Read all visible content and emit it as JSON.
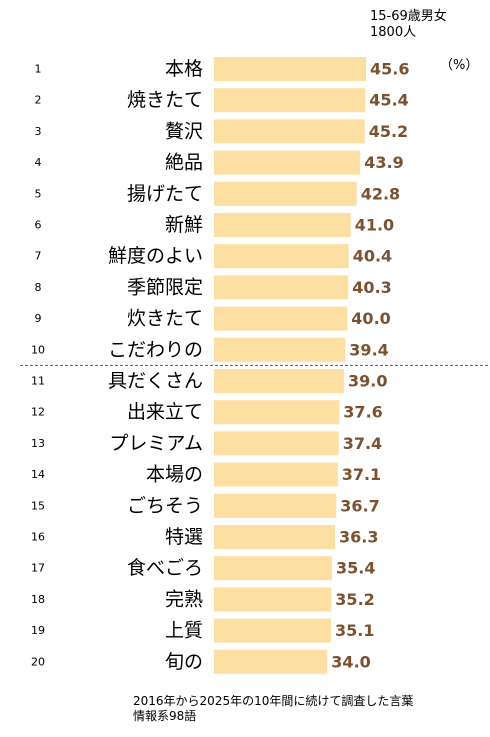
{
  "header": {
    "sample_line1": "15-69歳男女",
    "sample_line2": "1800人",
    "unit": "（%）"
  },
  "footnote": {
    "line1": "2016年から2025年の10年間に続けて調査した言葉",
    "line2": "情報系98語"
  },
  "colors": {
    "bar": "#FDDFA4",
    "value_text": "#7A5230",
    "divider": "#555555"
  },
  "chart_data": {
    "type": "bar",
    "orientation": "horizontal",
    "ranks": [
      "1",
      "2",
      "3",
      "4",
      "5",
      "6",
      "7",
      "8",
      "9",
      "10",
      "11",
      "12",
      "13",
      "14",
      "15",
      "16",
      "17",
      "18",
      "19",
      "20"
    ],
    "categories": [
      "本格",
      "焼きたて",
      "贅沢",
      "絶品",
      "揚げたて",
      "新鮮",
      "鮮度のよい",
      "季節限定",
      "炊きたて",
      "こだわりの",
      "具だくさん",
      "出来立て",
      "プレミアム",
      "本場の",
      "ごちそう",
      "特選",
      "食べごろ",
      "完熟",
      "上質",
      "旬の"
    ],
    "values": [
      45.6,
      45.4,
      45.2,
      43.9,
      42.8,
      41.0,
      40.4,
      40.3,
      40.0,
      39.4,
      39.0,
      37.6,
      37.4,
      37.1,
      36.7,
      36.3,
      35.4,
      35.2,
      35.1,
      34.0
    ],
    "value_labels": [
      "45.6",
      "45.4",
      "45.2",
      "43.9",
      "42.8",
      "41.0",
      "40.4",
      "40.3",
      "40.0",
      "39.4",
      "39.0",
      "37.6",
      "37.4",
      "37.1",
      "36.7",
      "36.3",
      "35.4",
      "35.2",
      "35.1",
      "34.0"
    ],
    "xlim": [
      0,
      45.6
    ],
    "divider_after_rank": 10,
    "grid": false
  }
}
